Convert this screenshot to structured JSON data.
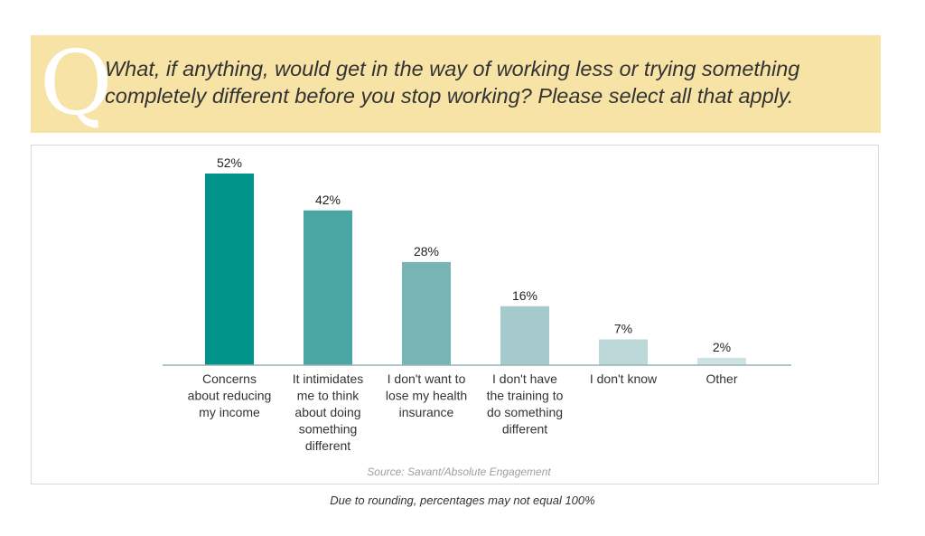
{
  "header": {
    "q_letter": "Q",
    "question": "What, if anything, would get in the way of working less or trying something completely different before you stop working? Please select all that apply."
  },
  "source": "Source: Savant/Absolute Engagement",
  "footnote": "Due to rounding, percentages may not equal 100%",
  "colors": {
    "banner": "#f7e3a6",
    "bars": [
      "#00938a",
      "#4aa6a3",
      "#78b4b4",
      "#a6cacb",
      "#bdd8d9",
      "#cfe2e3"
    ],
    "axis": "#9ab3b3"
  },
  "chart_data": {
    "type": "bar",
    "categories": [
      [
        "Concerns",
        "about reducing",
        "my income"
      ],
      [
        "It intimidates",
        "me to think",
        "about doing",
        "something",
        "different"
      ],
      [
        "I don't want to",
        "lose my health",
        "insurance"
      ],
      [
        "I don't have",
        "the training to",
        "do something",
        "different"
      ],
      [
        "I don't know"
      ],
      [
        "Other"
      ]
    ],
    "values": [
      52,
      42,
      28,
      16,
      7,
      2
    ],
    "data_labels": [
      "52%",
      "42%",
      "28%",
      "16%",
      "7%",
      "2%"
    ],
    "ylim": [
      0,
      52
    ],
    "grid": false,
    "legend": false
  }
}
